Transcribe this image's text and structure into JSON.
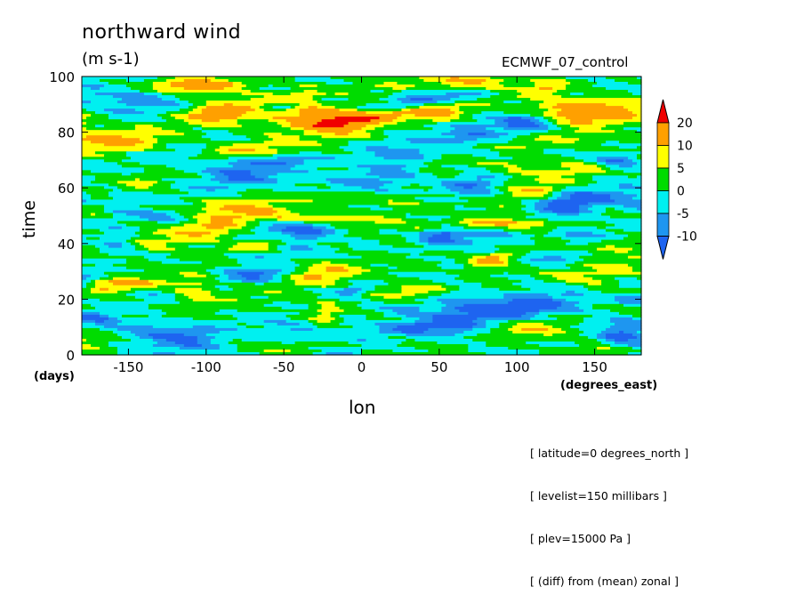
{
  "header": {
    "title": "northward wind",
    "units": "(m s-1)",
    "model": "ECMWF_07_control"
  },
  "notes": [
    "[ latitude=0 degrees_north ]",
    "[ levelist=150 millibars ]",
    "[ plev=15000 Pa ]",
    "[ (diff) from (mean) zonal ]"
  ],
  "chart_data": {
    "type": "heatmap",
    "title": "northward wind",
    "subtitle": "(m s-1)",
    "xlabel": "lon",
    "ylabel": "time",
    "x_unit": "(degrees_east)",
    "y_unit": "(days)",
    "xlim": [
      -180,
      180
    ],
    "ylim": [
      0,
      100
    ],
    "xticks": [
      -150,
      -100,
      -50,
      0,
      50,
      100,
      150
    ],
    "yticks": [
      0,
      20,
      40,
      60,
      80,
      100
    ],
    "colorbar": {
      "levels": [
        -10,
        -5,
        0,
        5,
        10,
        20
      ],
      "level_labels": [
        "-10",
        "-5",
        "0",
        "5",
        "10",
        "20"
      ],
      "colors": [
        "#1e64f0",
        "#1e96f0",
        "#00f0f0",
        "#00dc00",
        "#ffff00",
        "#ffa000",
        "#f00000"
      ]
    }
  }
}
